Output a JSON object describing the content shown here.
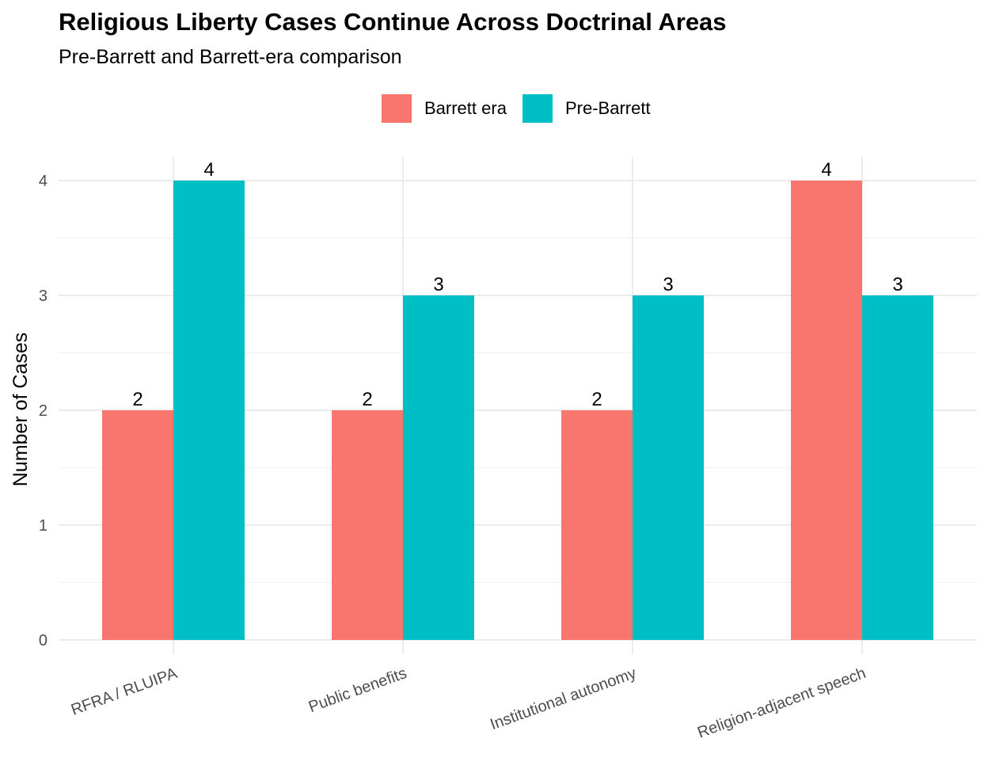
{
  "chart_data": {
    "type": "bar",
    "title": "Religious Liberty Cases Continue Across Doctrinal Areas",
    "subtitle": "Pre-Barrett and Barrett-era comparison",
    "xlabel": "",
    "ylabel": "Number of Cases",
    "categories": [
      "RFRA / RLUIPA",
      "Public benefits",
      "Institutional autonomy",
      "Religion-adjacent speech"
    ],
    "series": [
      {
        "name": "Barrett era",
        "values": [
          2,
          2,
          2,
          4
        ],
        "color": "#F8766D"
      },
      {
        "name": "Pre-Barrett",
        "values": [
          4,
          3,
          3,
          3
        ],
        "color": "#00BFC4"
      }
    ],
    "ylim": [
      0,
      4
    ],
    "yticks": [
      0,
      1,
      2,
      3,
      4
    ],
    "grid": true,
    "legend_position": "top",
    "data_labels": true
  }
}
